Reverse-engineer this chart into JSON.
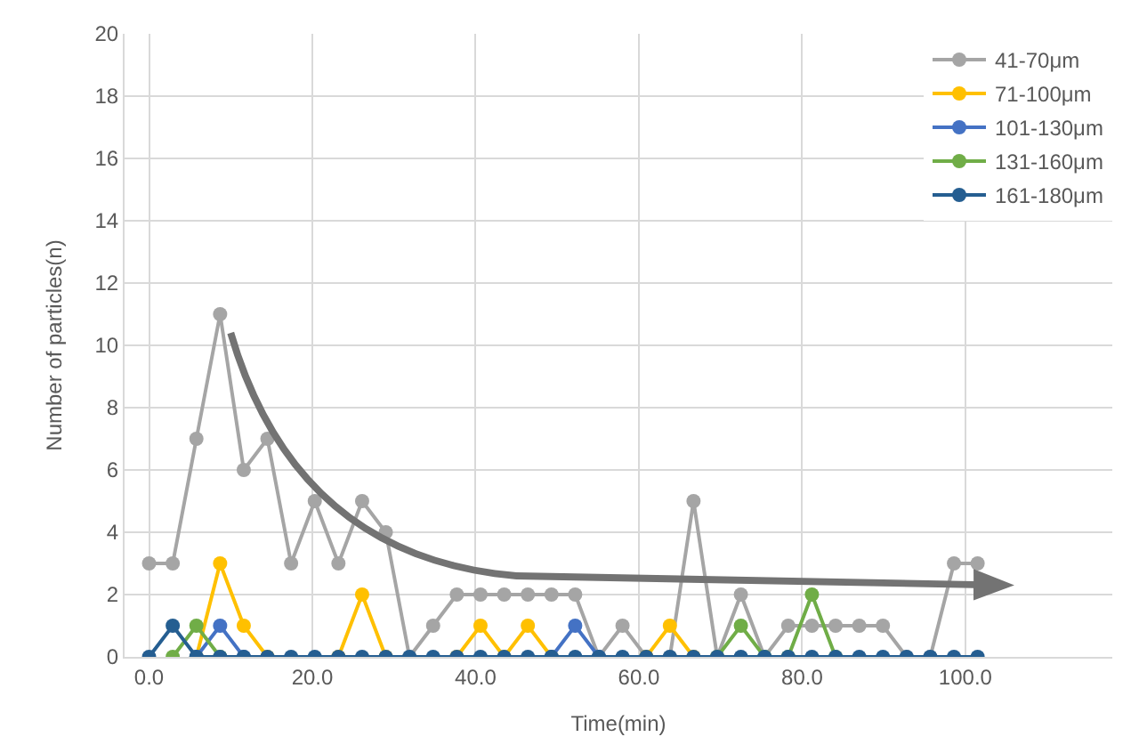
{
  "chart_data": {
    "type": "line",
    "xlabel": "Time(min)",
    "ylabel": "Number of particles(n)",
    "x": [
      0,
      2.9,
      5.8,
      8.7,
      11.6,
      14.5,
      17.4,
      20.3,
      23.2,
      26.1,
      29,
      31.9,
      34.8,
      37.7,
      40.6,
      43.5,
      46.4,
      49.3,
      52.2,
      55.1,
      58,
      60.9,
      63.8,
      66.7,
      69.6,
      72.5,
      75.4,
      78.3,
      81.2,
      84.1,
      87,
      89.9,
      92.8,
      95.7,
      98.6,
      101.5
    ],
    "series": [
      {
        "name": "41-70μm",
        "color": "#a5a5a5",
        "values": [
          3,
          3,
          7,
          11,
          6,
          7,
          3,
          5,
          3,
          5,
          4,
          0,
          1,
          2,
          2,
          2,
          2,
          2,
          2,
          0,
          1,
          0,
          0,
          5,
          0,
          2,
          0,
          1,
          1,
          1,
          1,
          1,
          0,
          0,
          3,
          3
        ]
      },
      {
        "name": "71-100μm",
        "color": "#ffc000",
        "values": [
          null,
          null,
          0,
          3,
          1,
          0,
          null,
          null,
          0,
          2,
          0,
          null,
          null,
          0,
          1,
          0,
          1,
          0,
          null,
          null,
          null,
          0,
          1,
          0,
          null,
          null,
          null,
          null,
          null,
          null,
          null,
          null,
          null,
          null,
          null,
          null
        ]
      },
      {
        "name": "101-130μm",
        "color": "#4472c4",
        "values": [
          null,
          null,
          0,
          1,
          0,
          null,
          null,
          null,
          null,
          null,
          null,
          null,
          null,
          null,
          null,
          null,
          null,
          0,
          1,
          0,
          null,
          null,
          null,
          null,
          null,
          null,
          null,
          null,
          null,
          null,
          null,
          null,
          null,
          null,
          null,
          null
        ]
      },
      {
        "name": "131-160μm",
        "color": "#70ad47",
        "values": [
          null,
          0,
          1,
          0,
          null,
          null,
          null,
          null,
          null,
          null,
          null,
          null,
          null,
          null,
          null,
          null,
          null,
          null,
          null,
          null,
          null,
          null,
          null,
          null,
          0,
          1,
          0,
          0,
          2,
          0,
          null,
          null,
          null,
          null,
          null,
          null
        ]
      },
      {
        "name": "161-180μm",
        "color": "#255e91",
        "values": [
          0,
          1,
          0,
          0,
          0,
          0,
          0,
          0,
          0,
          0,
          0,
          0,
          0,
          0,
          0,
          0,
          0,
          0,
          0,
          0,
          0,
          0,
          0,
          0,
          0,
          0,
          0,
          0,
          0,
          0,
          0,
          0,
          0,
          0,
          0,
          0
        ]
      }
    ],
    "xlim": [
      -3,
      118
    ],
    "ylim": [
      0,
      20
    ],
    "xticks": [
      {
        "value": 0,
        "label": "0.0"
      },
      {
        "value": 20,
        "label": "20.0"
      },
      {
        "value": 40,
        "label": "40.0"
      },
      {
        "value": 60,
        "label": "60.0"
      },
      {
        "value": 80,
        "label": "80.0"
      },
      {
        "value": 100,
        "label": "100.0"
      }
    ],
    "yticks": [
      0,
      2,
      4,
      6,
      8,
      10,
      12,
      14,
      16,
      18,
      20
    ],
    "grid": true,
    "legend": "top right",
    "marker": "circle",
    "line_style": "solid"
  }
}
